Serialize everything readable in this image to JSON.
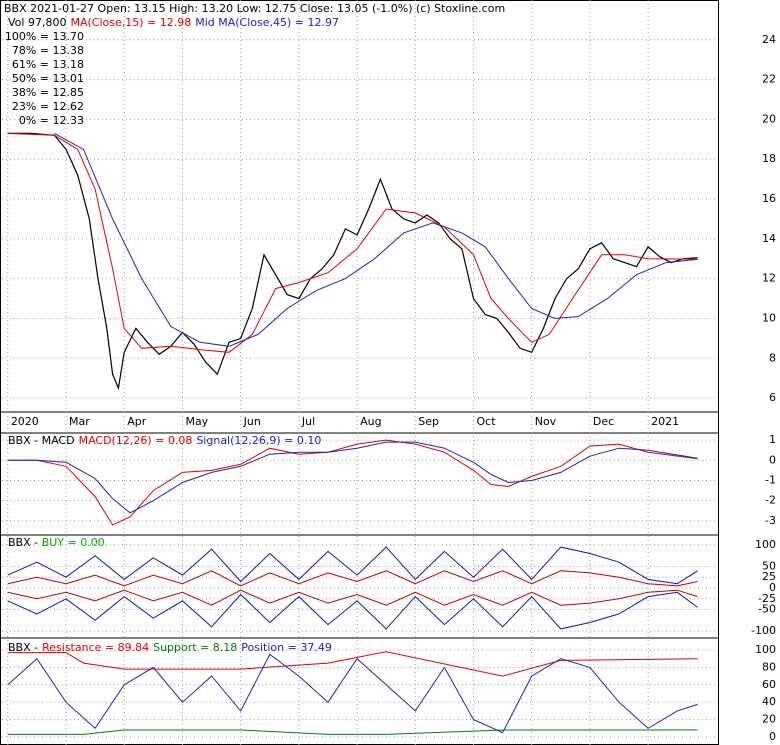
{
  "chart_data": [
    {
      "type": "line",
      "title": "BBX  2021-01-27 Open: 13.15  High: 13.20  Low: 12.75  Close: 13.05 (-1.0%)  (c) Stoxline.com",
      "annotation": "Vol 97,800",
      "fib_levels": [
        {
          "label": "100% = 13.70",
          "color": "#e00000"
        },
        {
          "label": "78% = 13.38",
          "color": "#b000b0"
        },
        {
          "label": "61% = 13.18",
          "color": "#8aa8d8"
        },
        {
          "label": "50% = 13.01",
          "color": "#2020a0"
        },
        {
          "label": "38% = 12.85",
          "color": "#8aa8d8"
        },
        {
          "label": "23% = 12.62",
          "color": "#b000b0"
        },
        {
          "label": "0% = 12.33",
          "color": "#008000"
        }
      ],
      "xlim": [
        -0.1,
        12.2
      ],
      "xticks": [
        {
          "value": 0,
          "label": "2020"
        },
        {
          "value": 1,
          "label": "Mar"
        },
        {
          "value": 2,
          "label": "Apr"
        },
        {
          "value": 3,
          "label": "May"
        },
        {
          "value": 4,
          "label": "Jun"
        },
        {
          "value": 5,
          "label": "Jul"
        },
        {
          "value": 6,
          "label": "Aug"
        },
        {
          "value": 7,
          "label": "Sep"
        },
        {
          "value": 8,
          "label": "Oct"
        },
        {
          "value": 9,
          "label": "Nov"
        },
        {
          "value": 10,
          "label": "Dec"
        },
        {
          "value": 11,
          "label": "2021"
        }
      ],
      "ylim": [
        5.3,
        26
      ],
      "yticks": [
        6,
        8,
        10,
        12,
        14,
        16,
        18,
        20,
        22,
        24
      ],
      "series": [
        {
          "color": "#000000",
          "x": [
            0,
            0.4,
            0.8,
            1.0,
            1.2,
            1.4,
            1.55,
            1.7,
            1.8,
            1.9,
            2.0,
            2.2,
            2.4,
            2.6,
            2.8,
            3.0,
            3.2,
            3.4,
            3.6,
            3.8,
            4.0,
            4.2,
            4.4,
            4.6,
            4.8,
            5.0,
            5.2,
            5.4,
            5.6,
            5.8,
            6.0,
            6.2,
            6.4,
            6.6,
            6.8,
            7.0,
            7.2,
            7.4,
            7.6,
            7.8,
            8.0,
            8.2,
            8.4,
            8.6,
            8.8,
            9.0,
            9.2,
            9.4,
            9.6,
            9.8,
            10.0,
            10.2,
            10.4,
            10.6,
            10.8,
            11.0,
            11.2,
            11.4,
            11.6,
            11.85
          ],
          "values": [
            19.3,
            19.3,
            19.2,
            18.5,
            17.2,
            15,
            12,
            9.5,
            7.2,
            6.5,
            8.3,
            9.5,
            8.8,
            8.2,
            8.6,
            9.3,
            8.7,
            7.8,
            7.2,
            8.8,
            9,
            10.5,
            13.2,
            12.2,
            11.2,
            11,
            12,
            12.5,
            13.2,
            14.5,
            14.2,
            15.5,
            17,
            15.5,
            15,
            14.8,
            15.2,
            14.8,
            14,
            13.5,
            11,
            10.2,
            10,
            9.3,
            8.5,
            8.3,
            9.5,
            11,
            12,
            12.5,
            13.5,
            13.8,
            13,
            12.8,
            12.6,
            13.6,
            13.1,
            12.8,
            13,
            13.05
          ]
        },
        {
          "name": "MA(Close,15) = 12.98",
          "color": "#e00000",
          "x": [
            0,
            0.8,
            1.2,
            1.5,
            1.8,
            2.0,
            2.3,
            2.8,
            3.4,
            3.8,
            4.2,
            4.6,
            5.0,
            5.5,
            6.0,
            6.5,
            7.0,
            7.5,
            8.0,
            8.3,
            8.6,
            9.0,
            9.3,
            9.7,
            10.2,
            10.6,
            11.0,
            11.85
          ],
          "values": [
            19.3,
            19.2,
            18.5,
            16.5,
            12.5,
            9.5,
            8.5,
            8.6,
            8.4,
            8.3,
            9.2,
            11.5,
            11.8,
            12.3,
            13.5,
            15.5,
            15.3,
            14.6,
            13.2,
            11,
            10,
            8.8,
            9.2,
            11,
            13.2,
            13.2,
            13,
            12.98
          ]
        },
        {
          "name": "Mid MA(Close,45) = 12.97",
          "color": "#2020c0",
          "x": [
            0.8,
            1.3,
            1.8,
            2.3,
            2.8,
            3.3,
            3.8,
            4.3,
            4.8,
            5.3,
            5.8,
            6.3,
            6.8,
            7.3,
            7.8,
            8.2,
            8.6,
            9.0,
            9.4,
            9.8,
            10.3,
            10.8,
            11.3,
            11.85
          ],
          "values": [
            19.3,
            18.5,
            15,
            12,
            9.6,
            8.8,
            8.6,
            9.2,
            10.5,
            11.4,
            12,
            13,
            14.3,
            14.8,
            14.3,
            13.6,
            12,
            10.5,
            10,
            10.1,
            11,
            12.2,
            12.8,
            12.97
          ]
        }
      ]
    },
    {
      "type": "line",
      "title": "BBX - MACD",
      "xlim": [
        -0.1,
        12.2
      ],
      "ylim": [
        -3.6,
        1.35
      ],
      "yticks": [
        1,
        0,
        -1,
        -2,
        -3
      ],
      "series": [
        {
          "name": "MACD(12,26) = 0.08",
          "color": "#e00000",
          "x": [
            0,
            0.5,
            1.0,
            1.5,
            1.8,
            2.1,
            2.5,
            3.0,
            3.5,
            4.0,
            4.5,
            5.0,
            5.5,
            6.0,
            6.5,
            7.0,
            7.5,
            8.0,
            8.3,
            8.6,
            9.0,
            9.5,
            10.0,
            10.5,
            11.0,
            11.85
          ],
          "values": [
            0,
            0,
            -0.3,
            -1.8,
            -3.2,
            -2.8,
            -1.5,
            -0.6,
            -0.5,
            -0.2,
            0.6,
            0.3,
            0.4,
            0.8,
            1.0,
            0.8,
            0.4,
            -0.5,
            -1.2,
            -1.3,
            -0.8,
            -0.3,
            0.7,
            0.8,
            0.4,
            0.08
          ]
        },
        {
          "name": "Signal(12,26,9) = 0.10",
          "color": "#2020c0",
          "x": [
            0,
            0.5,
            1.0,
            1.5,
            1.8,
            2.1,
            2.5,
            3.0,
            3.5,
            4.0,
            4.5,
            5.0,
            5.5,
            6.0,
            6.5,
            7.0,
            7.5,
            8.0,
            8.3,
            8.6,
            9.0,
            9.5,
            10.0,
            10.5,
            11.0,
            11.85
          ],
          "values": [
            0,
            0,
            -0.1,
            -0.9,
            -1.9,
            -2.6,
            -2.0,
            -1.1,
            -0.6,
            -0.3,
            0.3,
            0.4,
            0.4,
            0.6,
            0.9,
            0.9,
            0.6,
            -0.1,
            -0.7,
            -1.1,
            -1.0,
            -0.6,
            0.2,
            0.6,
            0.5,
            0.1
          ]
        }
      ]
    },
    {
      "type": "line",
      "title": "BBX -",
      "indicator": "BUY = 0.00",
      "indicator_color": "#00b000",
      "xlim": [
        -0.1,
        12.2
      ],
      "ylim": [
        -116,
        123
      ],
      "yticks": [
        100,
        50,
        25,
        0,
        -25,
        -50,
        -100
      ],
      "series": [
        {
          "color": "#1010c0",
          "x": [
            0,
            0.5,
            1,
            1.5,
            2,
            2.5,
            3,
            3.5,
            4,
            4.5,
            5,
            5.5,
            6,
            6.5,
            7,
            7.5,
            8,
            8.5,
            9,
            9.5,
            10,
            10.5,
            11,
            11.5,
            11.85
          ],
          "values": [
            30,
            60,
            25,
            75,
            20,
            70,
            30,
            90,
            15,
            80,
            20,
            85,
            30,
            95,
            20,
            85,
            25,
            90,
            20,
            95,
            80,
            60,
            20,
            10,
            40
          ]
        },
        {
          "color": "#1010c0",
          "x": [
            0,
            0.5,
            1,
            1.5,
            2,
            2.5,
            3,
            3.5,
            4,
            4.5,
            5,
            5.5,
            6,
            6.5,
            7,
            7.5,
            8,
            8.5,
            9,
            9.5,
            10,
            10.5,
            11,
            11.5,
            11.85
          ],
          "values": [
            -30,
            -60,
            -25,
            -75,
            -20,
            -70,
            -30,
            -90,
            -15,
            -80,
            -20,
            -85,
            -30,
            -95,
            -20,
            -85,
            -25,
            -90,
            -20,
            -95,
            -80,
            -60,
            -20,
            -10,
            -45
          ]
        },
        {
          "color": "#c00000",
          "x": [
            0,
            0.5,
            1,
            1.5,
            2,
            2.5,
            3,
            3.5,
            4,
            4.5,
            5,
            5.5,
            6,
            6.5,
            7,
            7.5,
            8,
            8.5,
            9,
            9.5,
            10,
            10.5,
            11,
            11.5,
            11.85
          ],
          "values": [
            10,
            25,
            10,
            30,
            5,
            30,
            10,
            40,
            5,
            35,
            10,
            35,
            15,
            40,
            10,
            40,
            15,
            40,
            10,
            40,
            35,
            25,
            10,
            5,
            15
          ]
        },
        {
          "color": "#c00000",
          "x": [
            0,
            0.5,
            1,
            1.5,
            2,
            2.5,
            3,
            3.5,
            4,
            4.5,
            5,
            5.5,
            6,
            6.5,
            7,
            7.5,
            8,
            8.5,
            9,
            9.5,
            10,
            10.5,
            11,
            11.5,
            11.85
          ],
          "values": [
            -10,
            -25,
            -10,
            -30,
            -5,
            -30,
            -10,
            -40,
            -5,
            -35,
            -10,
            -35,
            -15,
            -40,
            -10,
            -40,
            -15,
            -40,
            -10,
            -40,
            -35,
            -25,
            -10,
            -5,
            -20
          ]
        }
      ]
    },
    {
      "type": "line",
      "title": "BBX -",
      "xlim": [
        -0.1,
        12.2
      ],
      "ylim": [
        -9.2,
        111.5
      ],
      "yticks": [
        100,
        80,
        60,
        40,
        20,
        0
      ],
      "series": [
        {
          "name": "Resistance = 89.84",
          "color": "#e00000",
          "x": [
            0,
            1,
            1.3,
            2,
            4,
            5.5,
            6.5,
            8.5,
            9.5,
            11.85
          ],
          "values": [
            97,
            97,
            85,
            78,
            78,
            85,
            98,
            70,
            88,
            89.84
          ]
        },
        {
          "name": "Support = 8.18",
          "color": "#008000",
          "x": [
            0,
            1,
            1.3,
            2,
            4,
            5.5,
            6.5,
            8.5,
            9.5,
            11.85
          ],
          "values": [
            3,
            3,
            3,
            8,
            8,
            3,
            3,
            8,
            8,
            8.18
          ]
        },
        {
          "name": "Position = 37.49",
          "color": "#2020c0",
          "x": [
            0,
            0.5,
            1,
            1.5,
            2,
            2.5,
            3,
            3.5,
            4,
            4.5,
            5,
            5.5,
            6,
            6.5,
            7,
            7.5,
            8,
            8.5,
            9,
            9.5,
            10,
            10.5,
            11,
            11.5,
            11.85
          ],
          "values": [
            60,
            90,
            40,
            10,
            60,
            80,
            40,
            70,
            30,
            95,
            70,
            40,
            90,
            60,
            30,
            80,
            20,
            5,
            70,
            90,
            80,
            40,
            10,
            30,
            37.49
          ]
        }
      ]
    }
  ]
}
